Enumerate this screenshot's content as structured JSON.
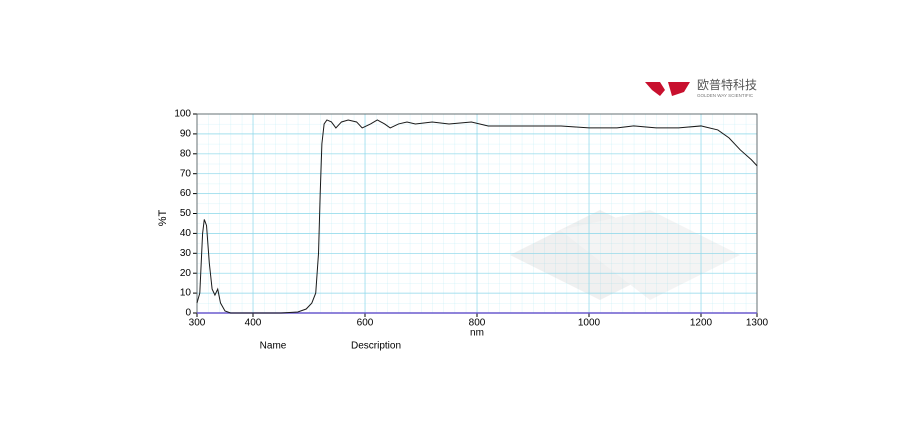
{
  "logo": {
    "name": "欧普特科技",
    "subtitle": "GOLDEN WAY SCIENTIFIC"
  },
  "chart_data": {
    "type": "line",
    "ylabel": "%T",
    "xlabel": "nm",
    "footer": [
      "Name",
      "Description"
    ],
    "xlim": [
      300,
      1300
    ],
    "xticks": [
      300,
      400,
      600,
      800,
      1000,
      1200,
      1300
    ],
    "ylim": [
      0,
      100
    ],
    "yticks": [
      0,
      10,
      20,
      30,
      40,
      50,
      60,
      70,
      80,
      90,
      100
    ],
    "grid": true,
    "series": [
      {
        "color": "#1a1a1a",
        "x": [
          300,
          305,
          310,
          313,
          317,
          322,
          327,
          332,
          337,
          342,
          350,
          360,
          400,
          450,
          480,
          495,
          505,
          512,
          517,
          520,
          523,
          527,
          532,
          540,
          548,
          558,
          570,
          585,
          595,
          610,
          622,
          635,
          645,
          660,
          675,
          690,
          720,
          750,
          790,
          820,
          860,
          900,
          950,
          1000,
          1050,
          1080,
          1120,
          1160,
          1200,
          1230,
          1250,
          1270,
          1290,
          1300
        ],
        "values": [
          5,
          10,
          40,
          47,
          44,
          25,
          12,
          9,
          12,
          5,
          1,
          0,
          0,
          0,
          0.5,
          2,
          5,
          10,
          30,
          60,
          85,
          95,
          97,
          96,
          93,
          96,
          97,
          96,
          93,
          95,
          97,
          95,
          93,
          95,
          96,
          95,
          96,
          95,
          96,
          94,
          94,
          94,
          94,
          93,
          93,
          94,
          93,
          93,
          94,
          92,
          88,
          82,
          77,
          74
        ]
      }
    ]
  }
}
